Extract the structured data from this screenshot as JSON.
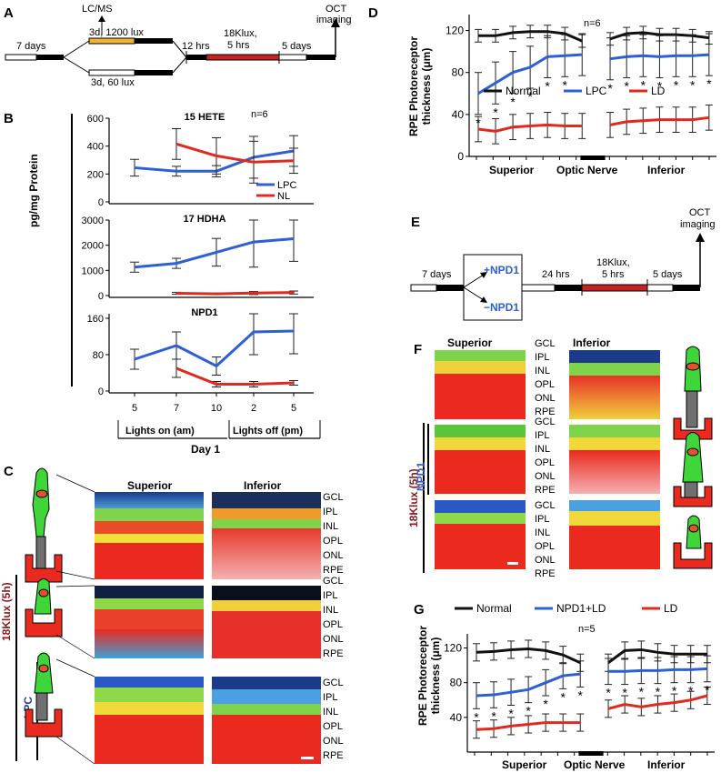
{
  "panels": {
    "A": {
      "letter": "A",
      "step1": "7 days",
      "lcms": "LC/MS",
      "branch_top": "3d, 1200 lux",
      "branch_bottom": "3d, 60 lux",
      "step2": "12 hrs",
      "step3a": "18Klux,",
      "step3b": "5 hrs",
      "step4": "5 days",
      "oct_a": "OCT",
      "oct_b": "imaging"
    },
    "B": {
      "letter": "B",
      "ylabel": "pg/mg Protein",
      "n_label": "n=6",
      "xlabel_day": "Day 1",
      "lights_on": "Lights on (am)",
      "lights_off": "Lights off (pm)",
      "legend": [
        "LPC",
        "NL"
      ]
    },
    "C": {
      "letter": "C",
      "superior": "Superior",
      "inferior": "Inferior",
      "side_label": "18Klux (5h)",
      "lpc_label": "LPC",
      "layers_top": [
        "GCL",
        "IPL",
        "INL",
        "OPL",
        "ONL",
        "RPE"
      ],
      "layers_mid": [
        "GCL",
        "IPL",
        "INL",
        "OPL",
        "ONL",
        "RPE"
      ],
      "layers_bot": [
        "GCL",
        "IPL",
        "INL",
        "OPL",
        "ONL",
        "RPE"
      ]
    },
    "D": {
      "letter": "D",
      "ylabel1": "RPE Photoreceptor",
      "ylabel2": "thickness (μm)",
      "n_label": "n=6",
      "x_superior": "Superior",
      "x_optic": "Optic Nerve",
      "x_inferior": "Inferior",
      "legend": [
        "Normal",
        "LPC",
        "LD"
      ]
    },
    "E": {
      "letter": "E",
      "step1": "7 days",
      "plus": "+NPD1",
      "minus": "−NPD1",
      "step2": "24 hrs",
      "step3a": "18Klux,",
      "step3b": "5 hrs",
      "step4": "5 days",
      "oct_a": "OCT",
      "oct_b": "imaging"
    },
    "F": {
      "letter": "F",
      "superior": "Superior",
      "inferior": "Inferior",
      "side_label": "18Klux (5h)",
      "npd1_label": "NPD1",
      "layers_top": [
        "GCL",
        "IPL",
        "INL",
        "OPL",
        "ONL",
        "RPE"
      ],
      "layers_mid": [
        "GCL",
        "IPL",
        "INL",
        "OPL",
        "ONL",
        "RPE"
      ],
      "layers_bot": [
        "GCL",
        "IPL",
        "INL",
        "OPL",
        "ONL",
        "RPE"
      ]
    },
    "G": {
      "letter": "G",
      "ylabel1": "RPE Photoreceptor",
      "ylabel2": "thickness (μm)",
      "n_label": "n=5",
      "x_superior": "Superior",
      "x_optic": "Optic Nerve",
      "x_inferior": "Inferior",
      "legend": [
        "Normal",
        "NPD1+LD",
        "LD"
      ]
    }
  },
  "colors": {
    "blue": "#2f5fd6",
    "red": "#e02a1f",
    "black": "#111111",
    "darkred": "#8b1a1a",
    "npdblue": "#2f5fd6"
  },
  "chart_data": [
    {
      "id": "B1",
      "type": "line",
      "title": "15 HETE",
      "categories": [
        "5",
        "7",
        "10",
        "2",
        "5"
      ],
      "ylim": [
        0,
        600
      ],
      "yticks": [
        0,
        200,
        400,
        600
      ],
      "series": [
        {
          "name": "LPC",
          "values": [
            245,
            220,
            220,
            320,
            365
          ],
          "err": [
            60,
            35,
            40,
            150,
            110
          ]
        },
        {
          "name": "NL",
          "values": [
            null,
            415,
            330,
            285,
            295
          ],
          "err": [
            null,
            110,
            130,
            150,
            90
          ]
        }
      ]
    },
    {
      "id": "B2",
      "type": "line",
      "title": "17 HDHA",
      "categories": [
        "5",
        "7",
        "10",
        "2",
        "5"
      ],
      "ylim": [
        0,
        3000
      ],
      "yticks": [
        0,
        1000,
        2000,
        3000
      ],
      "series": [
        {
          "name": "LPC",
          "values": [
            1130,
            1280,
            1720,
            2130,
            2260
          ],
          "err": [
            200,
            200,
            550,
            1000,
            900
          ]
        },
        {
          "name": "NL",
          "values": [
            null,
            90,
            70,
            100,
            120
          ],
          "err": [
            null,
            40,
            30,
            60,
            60
          ]
        }
      ]
    },
    {
      "id": "B3",
      "type": "line",
      "title": "NPD1",
      "categories": [
        "5",
        "7",
        "10",
        "2",
        "5"
      ],
      "ylim": [
        0,
        170
      ],
      "yticks": [
        0,
        80,
        160
      ],
      "series": [
        {
          "name": "LPC",
          "values": [
            70,
            100,
            55,
            130,
            132
          ],
          "err": [
            22,
            30,
            20,
            50,
            50
          ]
        },
        {
          "name": "NL",
          "values": [
            null,
            50,
            15,
            15,
            18
          ],
          "err": [
            null,
            20,
            6,
            6,
            5
          ]
        }
      ]
    },
    {
      "id": "D",
      "type": "line",
      "ylim": [
        0,
        130
      ],
      "yticks": [
        0,
        40,
        80,
        120
      ],
      "series": [
        {
          "name": "Normal",
          "left": [
            115,
            115,
            118,
            119,
            119,
            117,
            110
          ],
          "right": [
            112,
            117,
            118,
            116,
            116,
            115,
            113
          ],
          "err": 6
        },
        {
          "name": "LPC",
          "left": [
            60,
            70,
            80,
            85,
            95,
            96,
            97
          ],
          "right": [
            93,
            95,
            96,
            95,
            96,
            96,
            97
          ],
          "err": 20
        },
        {
          "name": "LD",
          "left": [
            26,
            24,
            28,
            29,
            30,
            29,
            29
          ],
          "right": [
            30,
            33,
            34,
            35,
            35,
            35,
            37
          ],
          "err": 12
        }
      ],
      "stars_left": [
        0,
        1,
        2,
        3,
        4,
        5
      ],
      "stars_right": [
        0,
        1,
        2,
        3,
        4,
        5,
        6
      ]
    },
    {
      "id": "G",
      "type": "line",
      "ylim": [
        0,
        130
      ],
      "yticks": [
        40,
        80,
        120
      ],
      "series": [
        {
          "name": "Normal",
          "left": [
            115,
            116,
            118,
            119,
            117,
            112,
            103
          ],
          "right": [
            103,
            117,
            118,
            115,
            113,
            113,
            113
          ],
          "err": 10
        },
        {
          "name": "NPD1+LD",
          "left": [
            65,
            66,
            69,
            72,
            80,
            88,
            90
          ],
          "right": [
            93,
            93,
            94,
            94,
            95,
            95,
            96
          ],
          "err": 15
        },
        {
          "name": "LD",
          "left": [
            26,
            27,
            30,
            32,
            34,
            34,
            34
          ],
          "right": [
            50,
            55,
            52,
            55,
            57,
            60,
            65
          ],
          "err": 10
        }
      ],
      "stars_left": [
        0,
        1,
        2,
        3,
        4,
        5,
        6
      ],
      "stars_right": [
        0,
        1,
        2,
        3,
        4,
        5,
        6
      ]
    }
  ]
}
